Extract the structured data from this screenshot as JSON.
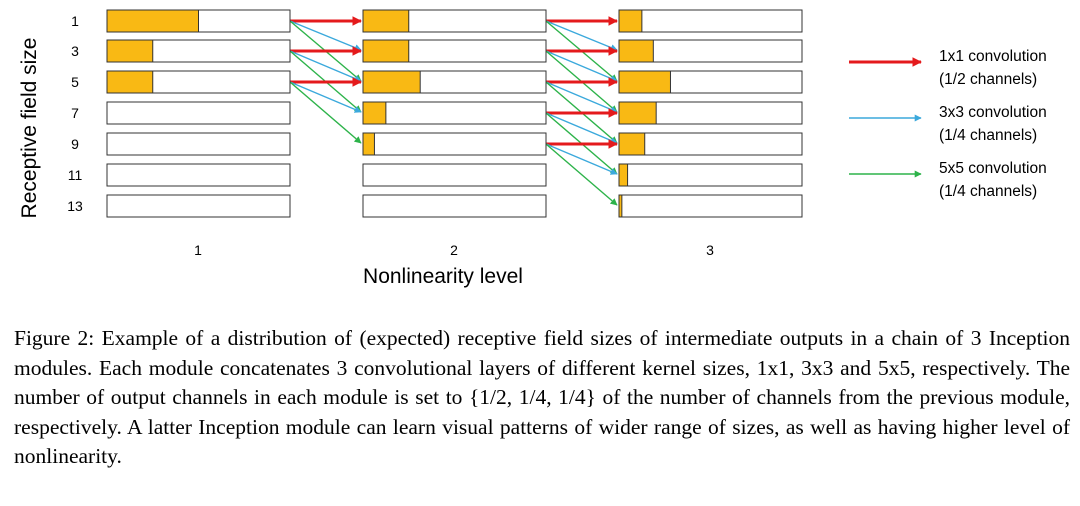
{
  "figure": {
    "y_axis_label": "Receptive field size",
    "x_axis_label": "Nonlinearity level",
    "row_labels": [
      "1",
      "3",
      "5",
      "7",
      "9",
      "11",
      "13"
    ],
    "levels": [
      {
        "label": "1",
        "fractions": [
          0.5,
          0.25,
          0.25,
          0,
          0,
          0,
          0
        ]
      },
      {
        "label": "2",
        "fractions": [
          0.25,
          0.25,
          0.3125,
          0.125,
          0.0625,
          0,
          0
        ]
      },
      {
        "label": "3",
        "fractions": [
          0.125,
          0.1875,
          0.28125,
          0.203125,
          0.140625,
          0.046875,
          0.015625
        ]
      }
    ],
    "colors": {
      "bar_fill": "#F9B914",
      "bar_border": "#333333",
      "conv1": "#E41A1C",
      "conv3": "#3BA9DC",
      "conv5": "#2DB34A"
    },
    "legend": [
      {
        "key": "conv1",
        "line1": "1x1 convolution",
        "line2": "(1/2 channels)"
      },
      {
        "key": "conv3",
        "line1": "3x3 convolution",
        "line2": "(1/4 channels)"
      },
      {
        "key": "conv5",
        "line1": "5x5 convolution",
        "line2": "(1/4 channels)"
      }
    ]
  },
  "caption": {
    "figure_label": "Figure 2:",
    "text": "Example of a distribution of (expected) receptive field sizes of intermediate outputs in a chain of 3 Inception modules. Each module concatenates 3 convolutional layers of different ker­nel sizes, 1x1, 3x3 and 5x5, respectively. The number of output channels in each module is set to {1/2, 1/4, 1/4} of the number of channels from the previous module, respectively. A latter In­ception module can learn visual patterns of wider range of sizes, as well as having higher level of nonlinearity."
  }
}
